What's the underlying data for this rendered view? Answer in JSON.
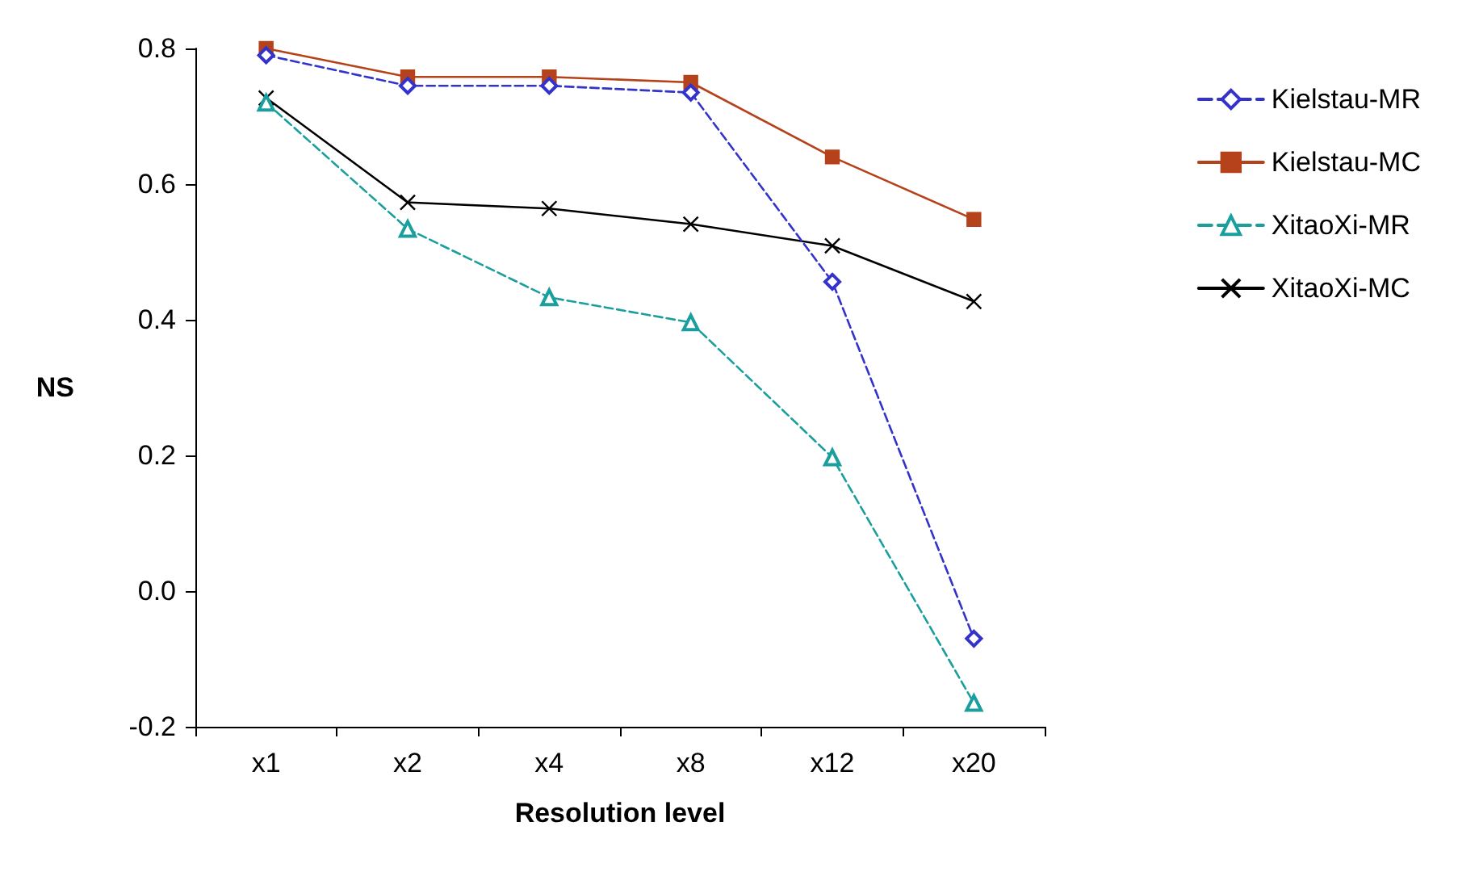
{
  "chart_data": {
    "type": "line",
    "xlabel": "Resolution level",
    "ylabel": "NS",
    "categories": [
      "x1",
      "x2",
      "x4",
      "x8",
      "x12",
      "x20"
    ],
    "ylim": [
      -0.2,
      0.8
    ],
    "yticks": [
      {
        "value": -0.2,
        "label": "-0.2"
      },
      {
        "value": 0,
        "label": "0.0"
      },
      {
        "value": 0.2,
        "label": "0.2"
      },
      {
        "value": 0.4,
        "label": "0.4"
      },
      {
        "value": 0.6,
        "label": "0.6"
      },
      {
        "value": 0.8,
        "label": "0.8"
      }
    ],
    "grid": false,
    "legend": "right",
    "series": [
      {
        "name": "Kielstau-MR",
        "color": "#3333cc",
        "marker": "diamond",
        "line_style": "dashed",
        "values": [
          0.79,
          0.745,
          0.745,
          0.735,
          0.456,
          -0.07
        ]
      },
      {
        "name": "Kielstau-MC",
        "color": "#b5421a",
        "marker": "square",
        "line_style": "solid",
        "values": [
          0.8,
          0.758,
          0.758,
          0.75,
          0.64,
          0.548
        ]
      },
      {
        "name": "XitaoXi-MR",
        "color": "#1a9e9e",
        "marker": "triangle",
        "line_style": "dashed",
        "values": [
          0.72,
          0.534,
          0.433,
          0.396,
          0.197,
          -0.165
        ]
      },
      {
        "name": "XitaoXi-MC",
        "color": "#000000",
        "marker": "cross",
        "line_style": "solid",
        "values": [
          0.727,
          0.573,
          0.564,
          0.541,
          0.509,
          0.427
        ]
      }
    ]
  }
}
